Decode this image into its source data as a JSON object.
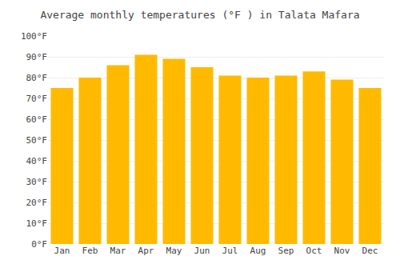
{
  "chart_data": {
    "type": "bar",
    "title": "Average monthly temperatures (°F ) in Talata Mafara",
    "categories": [
      "Jan",
      "Feb",
      "Mar",
      "Apr",
      "May",
      "Jun",
      "Jul",
      "Aug",
      "Sep",
      "Oct",
      "Nov",
      "Dec"
    ],
    "values": [
      75,
      80,
      86,
      91,
      89,
      85,
      81,
      80,
      81,
      83,
      79,
      75
    ],
    "color": "#FFBA00",
    "ylim": [
      0,
      100
    ],
    "yticks": [
      {
        "value": 0,
        "label": "0°F"
      },
      {
        "value": 10,
        "label": "10°F"
      },
      {
        "value": 20,
        "label": "20°F"
      },
      {
        "value": 30,
        "label": "30°F"
      },
      {
        "value": 40,
        "label": "40°F"
      },
      {
        "value": 50,
        "label": "50°F"
      },
      {
        "value": 60,
        "label": "60°F"
      },
      {
        "value": 70,
        "label": "70°F"
      },
      {
        "value": 80,
        "label": "80°F"
      },
      {
        "value": 90,
        "label": "90°F"
      },
      {
        "value": 100,
        "label": "100°F"
      }
    ],
    "grid": true
  }
}
